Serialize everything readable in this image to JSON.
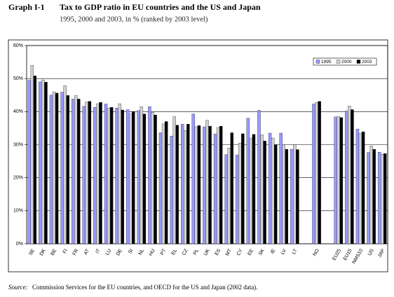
{
  "chart_data": {
    "type": "bar",
    "figure_label": "Graph I-1",
    "title": "Tax to GDP ratio in EU countries and the US and Japan",
    "subtitle": "1995, 2000 and 2003, in % (ranked by 2003 level)",
    "source_label": "Source:",
    "source_text": "Commission Services for the EU countries, and OECD for the US and Japan (2002 data).",
    "categories": [
      "SE",
      "DK",
      "BE",
      "FI",
      "FR",
      "AT",
      "IT",
      "LU",
      "DE",
      "SI",
      "NL",
      "HU",
      "PT",
      "EL",
      "CZ",
      "PL",
      "UK",
      "ES",
      "MT",
      "CY",
      "EE",
      "SK",
      "IE",
      "LV",
      "LT",
      null,
      "NO",
      null,
      "EU25",
      "EU15",
      "NMS10",
      "US",
      "JAP"
    ],
    "series": [
      {
        "name": "1995",
        "color": "#9999ff",
        "values": [
          49.5,
          49.0,
          45.0,
          45.9,
          43.8,
          41.6,
          41.3,
          42.3,
          41.1,
          40.6,
          40.3,
          41.5,
          33.6,
          32.6,
          36.2,
          39.3,
          35.4,
          33.2,
          27.0,
          26.9,
          38.0,
          40.4,
          33.5,
          33.5,
          28.6,
          null,
          42.3,
          null,
          38.4,
          40.2,
          34.7,
          27.6,
          27.7
        ]
      },
      {
        "name": "2000",
        "color": "#d0d0d0",
        "values": [
          54.0,
          49.6,
          46.0,
          47.9,
          44.9,
          42.9,
          42.4,
          41.1,
          42.4,
          39.3,
          41.5,
          39.8,
          36.3,
          38.5,
          34.3,
          35.4,
          37.4,
          35.2,
          29.0,
          30.5,
          32.0,
          33.0,
          32.0,
          30.0,
          30.0,
          null,
          42.8,
          null,
          38.5,
          41.7,
          33.4,
          29.6,
          27.1
        ]
      },
      {
        "name": "2003",
        "color": "#000000",
        "values": [
          50.8,
          48.9,
          45.6,
          44.9,
          43.8,
          43.1,
          42.8,
          41.3,
          40.5,
          40.0,
          39.3,
          39.0,
          37.0,
          35.9,
          36.2,
          35.8,
          35.6,
          35.6,
          33.6,
          33.3,
          33.1,
          31.1,
          30.0,
          28.6,
          28.5,
          null,
          43.1,
          null,
          38.2,
          40.6,
          33.9,
          28.6,
          27.3
        ]
      }
    ],
    "ylim": [
      0,
      60
    ],
    "yticks": [
      {
        "value": 0,
        "label": "0%"
      },
      {
        "value": 10,
        "label": "10%"
      },
      {
        "value": 20,
        "label": "20%"
      },
      {
        "value": 30,
        "label": "30%"
      },
      {
        "value": 40,
        "label": "40%"
      },
      {
        "value": 50,
        "label": "50%"
      },
      {
        "value": 60,
        "label": "60%"
      }
    ],
    "grid": true,
    "legend": "top-right"
  }
}
